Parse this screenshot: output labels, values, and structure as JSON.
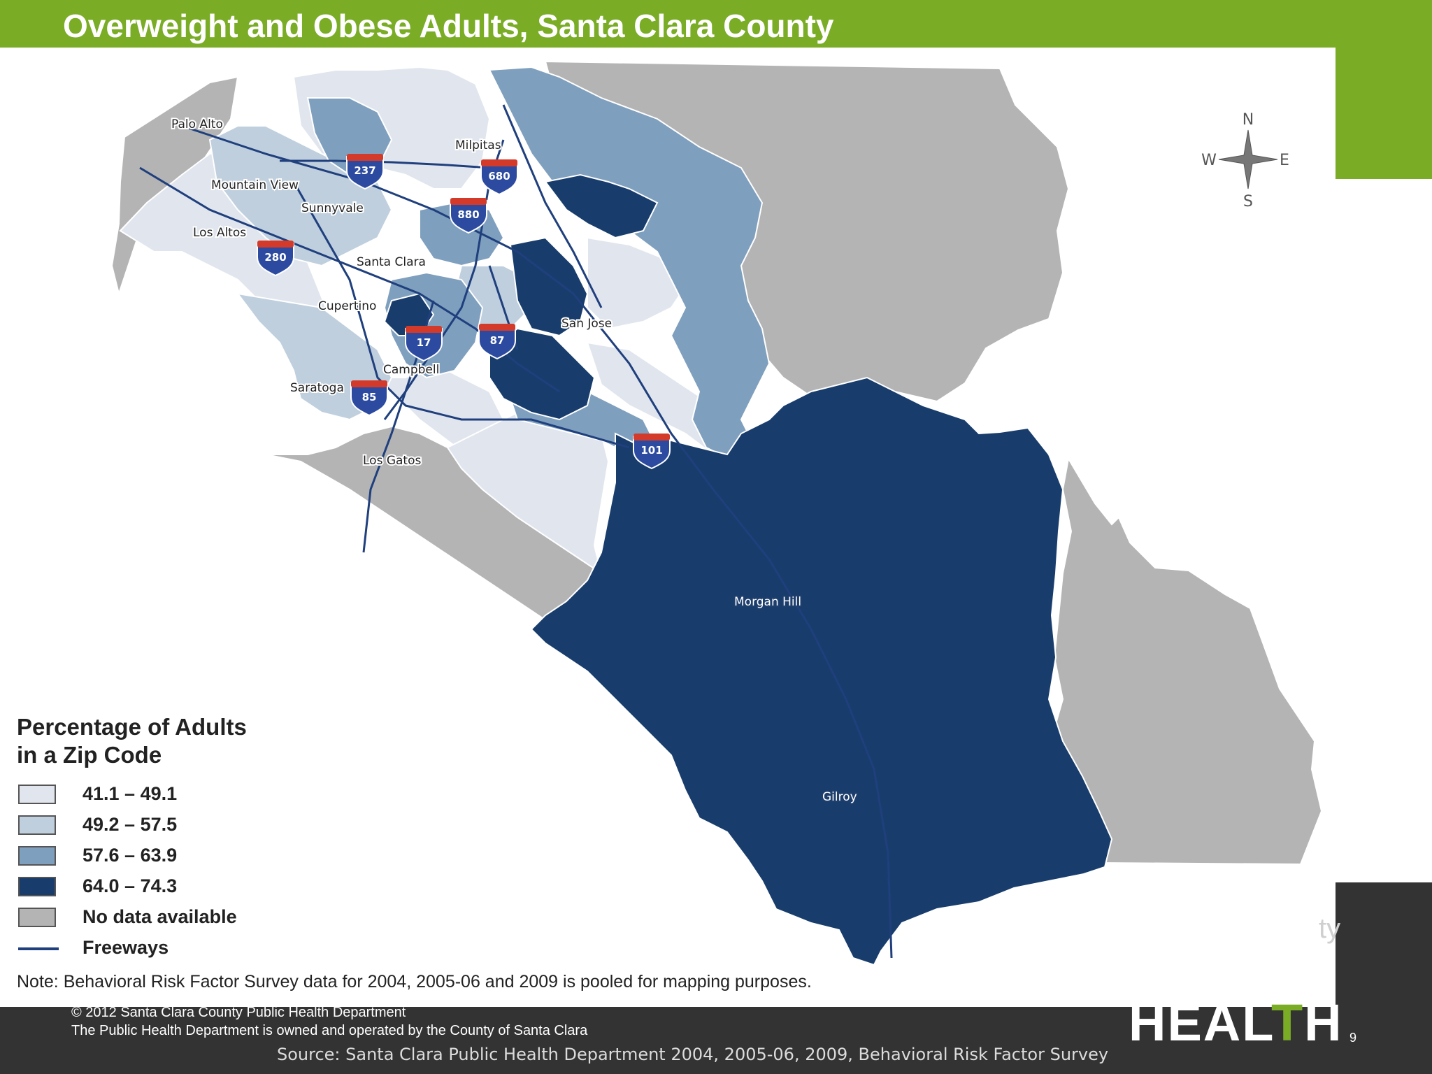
{
  "title": "Overweight and Obese Adults, Santa Clara County",
  "colors": {
    "brand_green": "#7aac26",
    "footer_dark": "#333333",
    "class_1": "#e1e6ee",
    "class_2": "#bfcfde",
    "class_3": "#7f9fbe",
    "class_4": "#183d6c",
    "no_data": "#b4b4b4",
    "freeway": "#1f3f7d",
    "shield_red": "#d43a2a",
    "shield_blue": "#2b4aa0"
  },
  "map": {
    "cities": {
      "palo_alto": "Palo Alto",
      "milpitas": "Milpitas",
      "mountain_view": "Mountain View",
      "sunnyvale": "Sunnyvale",
      "los_altos": "Los Altos",
      "santa_clara": "Santa Clara",
      "cupertino": "Cupertino",
      "san_jose": "San Jose",
      "campbell": "Campbell",
      "saratoga": "Saratoga",
      "los_gatos": "Los Gatos",
      "morgan_hill": "Morgan Hill",
      "gilroy": "Gilroy"
    },
    "freeway_shields": {
      "i237": "237",
      "i680": "680",
      "i880": "880",
      "i280": "280",
      "r17": "17",
      "r87": "87",
      "r85": "85",
      "us101": "101"
    },
    "compass": {
      "north": "N",
      "south": "S",
      "east": "E",
      "west": "W"
    }
  },
  "legend": {
    "title_line1": "Percentage of Adults",
    "title_line2": "in a Zip Code",
    "items": [
      {
        "label": "41.1 – 49.1",
        "color": "#e1e6ee"
      },
      {
        "label": "49.2 – 57.5",
        "color": "#bfcfde"
      },
      {
        "label": "57.6 – 63.9",
        "color": "#7f9fbe"
      },
      {
        "label": "64.0 – 74.3",
        "color": "#183d6c"
      },
      {
        "label": "No data available",
        "color": "#b4b4b4"
      },
      {
        "label": "Freeways",
        "color": "#1f3f7d"
      }
    ],
    "note": "Note: Behavioral Risk Factor Survey data for 2004, 2005-06 and 2009 is pooled for mapping purposes."
  },
  "footer": {
    "copyright": "© 2012 Santa Clara County Public Health Department",
    "ownership": "The Public Health Department is owned and operated by the County of Santa Clara",
    "source": "Source: Santa Clara Public Health Department 2004, 2005-06, 2009, Behavioral Risk Factor Survey",
    "page_number": "9",
    "logo_partial": "ty",
    "logo_word_start": "HEAL",
    "logo_word_accent": "T",
    "logo_word_end": "H"
  }
}
